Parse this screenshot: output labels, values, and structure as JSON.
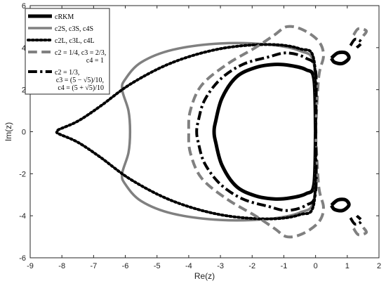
{
  "chart_data": {
    "type": "line",
    "title": "",
    "xlabel": "Re(z)",
    "ylabel": "Im(z)",
    "xlim": [
      -9,
      2
    ],
    "ylim": [
      -6,
      6
    ],
    "xticks": [
      -9,
      -8,
      -7,
      -6,
      -5,
      -4,
      -3,
      -2,
      -1,
      0,
      1,
      2
    ],
    "yticks": [
      -6,
      -4,
      -2,
      0,
      2,
      4,
      6
    ],
    "grid": false,
    "legend_placement": "top-left",
    "series": [
      {
        "name": "cRKM",
        "legend_lines": [
          "cRKM"
        ],
        "color": "#000000",
        "dash": "solid",
        "width": 5,
        "segments": [
          [
            [
              0,
              0
            ],
            [
              -0.05,
              2.5
            ],
            [
              -0.3,
              2.95
            ],
            [
              -0.8,
              3.15
            ],
            [
              -1.3,
              3.2
            ],
            [
              -1.9,
              3.05
            ],
            [
              -2.5,
              2.6
            ],
            [
              -2.95,
              1.6
            ],
            [
              -3.15,
              0.5
            ],
            [
              -3.2,
              0
            ],
            [
              -3.15,
              -0.5
            ],
            [
              -2.95,
              -1.6
            ],
            [
              -2.5,
              -2.6
            ],
            [
              -1.9,
              -3.05
            ],
            [
              -1.3,
              -3.2
            ],
            [
              -0.8,
              -3.15
            ],
            [
              -0.3,
              -2.95
            ],
            [
              -0.05,
              -2.5
            ],
            [
              0,
              0
            ]
          ],
          [
            [
              0.5,
              3.5
            ],
            [
              0.7,
              3.75
            ],
            [
              0.95,
              3.75
            ],
            [
              1.05,
              3.5
            ],
            [
              0.85,
              3.25
            ],
            [
              0.6,
              3.3
            ],
            [
              0.5,
              3.5
            ]
          ],
          [
            [
              0.5,
              -3.5
            ],
            [
              0.7,
              -3.25
            ],
            [
              0.95,
              -3.25
            ],
            [
              1.05,
              -3.5
            ],
            [
              0.85,
              -3.75
            ],
            [
              0.6,
              -3.7
            ],
            [
              0.5,
              -3.5
            ]
          ]
        ]
      },
      {
        "name": "c2S, c3S, c4S",
        "legend_lines": [
          "c2S, c3S, c4S"
        ],
        "color": "#808080",
        "dash": "solid",
        "width": 3.5,
        "segments": [
          [
            [
              0,
              0
            ],
            [
              -0.05,
              3.2
            ],
            [
              -0.5,
              3.85
            ],
            [
              -1.5,
              4.15
            ],
            [
              -3,
              4.2
            ],
            [
              -4.5,
              3.9
            ],
            [
              -5.5,
              3.3
            ],
            [
              -6,
              2.5
            ],
            [
              -6.1,
              2
            ],
            [
              -5.9,
              1
            ],
            [
              -5.85,
              0
            ],
            [
              -5.9,
              -1
            ],
            [
              -6.1,
              -2
            ],
            [
              -6,
              -2.5
            ],
            [
              -5.5,
              -3.3
            ],
            [
              -4.5,
              -3.9
            ],
            [
              -3,
              -4.2
            ],
            [
              -1.5,
              -4.15
            ],
            [
              -0.5,
              -3.85
            ],
            [
              -0.05,
              -3.2
            ],
            [
              0,
              0
            ]
          ]
        ]
      },
      {
        "name": "c2L, c3L, c4L",
        "legend_lines": [
          "c2L, c3L, c4L"
        ],
        "color": "#000000",
        "dash": "dotted",
        "width": 4,
        "segments": [
          [
            [
              0,
              0
            ],
            [
              -0.05,
              3.4
            ],
            [
              -0.5,
              3.95
            ],
            [
              -1.5,
              4.15
            ],
            [
              -3,
              3.95
            ],
            [
              -4.5,
              3.3
            ],
            [
              -5.8,
              2.3
            ],
            [
              -6.8,
              1.2
            ],
            [
              -7.5,
              0.5
            ],
            [
              -8.1,
              0.1
            ],
            [
              -8.15,
              0
            ],
            [
              -8.1,
              -0.1
            ],
            [
              -7.5,
              -0.5
            ],
            [
              -6.8,
              -1.2
            ],
            [
              -5.8,
              -2.3
            ],
            [
              -4.5,
              -3.3
            ],
            [
              -3,
              -3.95
            ],
            [
              -1.5,
              -4.15
            ],
            [
              -0.5,
              -3.95
            ],
            [
              -0.05,
              -3.4
            ],
            [
              0,
              0
            ]
          ]
        ]
      },
      {
        "name": "c2 = 1/4, c3 = 2/3, c4 = 1",
        "legend_lines": [
          "c2 = 1/4, c3 = 2/3,",
          "c4 = 1"
        ],
        "color": "#808080",
        "dash": "dashed",
        "width": 4,
        "segments": [
          [
            [
              0,
              0
            ],
            [
              0.1,
              2.6
            ],
            [
              0.25,
              3.6
            ],
            [
              0.1,
              4.3
            ],
            [
              -0.4,
              4.85
            ],
            [
              -0.9,
              5
            ],
            [
              -1.3,
              4.6
            ],
            [
              -1.9,
              4
            ],
            [
              -2.8,
              3.2
            ],
            [
              -3.6,
              2.2
            ],
            [
              -3.95,
              1
            ],
            [
              -4,
              0
            ],
            [
              -3.95,
              -1
            ],
            [
              -3.6,
              -2.2
            ],
            [
              -2.8,
              -3.2
            ],
            [
              -1.9,
              -4
            ],
            [
              -1.3,
              -4.6
            ],
            [
              -0.9,
              -5
            ],
            [
              -0.4,
              -4.85
            ],
            [
              0.1,
              -4.3
            ],
            [
              0.25,
              -3.6
            ],
            [
              0.1,
              -2.6
            ],
            [
              0,
              0
            ]
          ],
          [
            [
              1.2,
              4.6
            ],
            [
              1.35,
              4.9
            ],
            [
              1.6,
              4.8
            ],
            [
              1.5,
              4.55
            ]
          ],
          [
            [
              1.2,
              -4.6
            ],
            [
              1.35,
              -4.9
            ],
            [
              1.6,
              -4.8
            ],
            [
              1.5,
              -4.55
            ]
          ]
        ]
      },
      {
        "name": "c2 = 1/3, c3 = (5 − √5)/10, c4 = (5 + √5)/10",
        "legend_lines": [
          "c2 = 1/3,",
          "c3 = (5 − √5)/10,",
          "c4 = (5 + √5)/10"
        ],
        "color": "#000000",
        "dash": "dashdot",
        "width": 4,
        "segments": [
          [
            [
              0,
              0
            ],
            [
              0,
              2.9
            ],
            [
              -0.3,
              3.5
            ],
            [
              -0.9,
              3.75
            ],
            [
              -1.5,
              3.55
            ],
            [
              -2.3,
              3.2
            ],
            [
              -3.0,
              2.5
            ],
            [
              -3.5,
              1.5
            ],
            [
              -3.7,
              0.5
            ],
            [
              -3.75,
              0
            ],
            [
              -3.7,
              -0.5
            ],
            [
              -3.5,
              -1.5
            ],
            [
              -3.0,
              -2.5
            ],
            [
              -2.3,
              -3.2
            ],
            [
              -1.5,
              -3.55
            ],
            [
              -0.9,
              -3.75
            ],
            [
              -0.3,
              -3.5
            ],
            [
              0,
              -2.9
            ],
            [
              0,
              0
            ]
          ],
          [
            [
              1.1,
              4.1
            ],
            [
              1.25,
              4.4
            ],
            [
              1.45,
              4.25
            ],
            [
              1.3,
              4.0
            ]
          ],
          [
            [
              1.1,
              -4.1
            ],
            [
              1.25,
              -4.4
            ],
            [
              1.45,
              -4.25
            ],
            [
              1.3,
              -4.0
            ]
          ]
        ]
      }
    ]
  }
}
